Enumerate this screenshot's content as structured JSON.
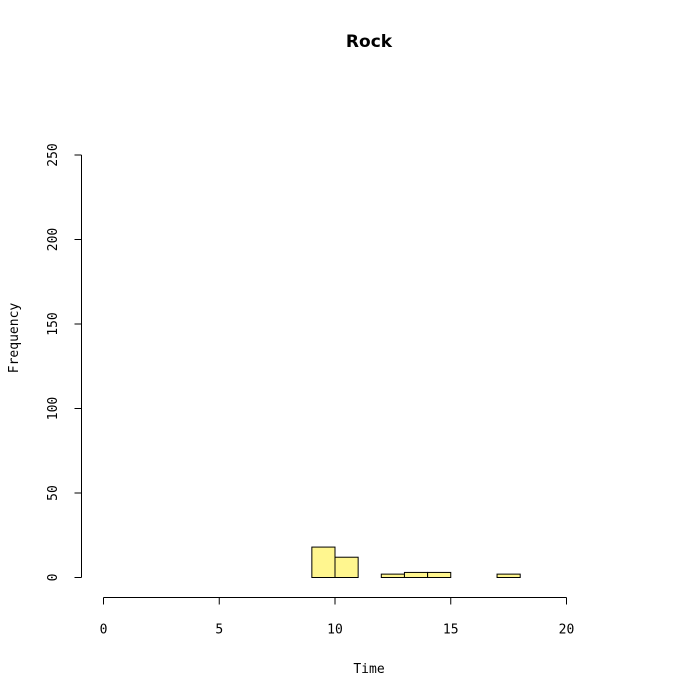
{
  "chart_data": {
    "type": "bar",
    "title": "Rock",
    "xlabel": "Time",
    "ylabel": "Frequency",
    "xlim": [
      0,
      24
    ],
    "ylim": [
      0,
      250
    ],
    "x_ticks": [
      0,
      5,
      10,
      15,
      20
    ],
    "y_ticks": [
      0,
      50,
      100,
      150,
      200,
      250
    ],
    "bin_width": 1,
    "bins": [
      {
        "start": 0,
        "end": 1,
        "count": 0
      },
      {
        "start": 1,
        "end": 2,
        "count": 0
      },
      {
        "start": 2,
        "end": 3,
        "count": 0
      },
      {
        "start": 3,
        "end": 4,
        "count": 0
      },
      {
        "start": 4,
        "end": 5,
        "count": 0
      },
      {
        "start": 5,
        "end": 6,
        "count": 0
      },
      {
        "start": 6,
        "end": 7,
        "count": 0
      },
      {
        "start": 7,
        "end": 8,
        "count": 0
      },
      {
        "start": 8,
        "end": 9,
        "count": 0
      },
      {
        "start": 9,
        "end": 10,
        "count": 18
      },
      {
        "start": 10,
        "end": 11,
        "count": 12
      },
      {
        "start": 11,
        "end": 12,
        "count": 0
      },
      {
        "start": 12,
        "end": 13,
        "count": 2
      },
      {
        "start": 13,
        "end": 14,
        "count": 3
      },
      {
        "start": 14,
        "end": 15,
        "count": 3
      },
      {
        "start": 15,
        "end": 16,
        "count": 0
      },
      {
        "start": 16,
        "end": 17,
        "count": 0
      },
      {
        "start": 17,
        "end": 18,
        "count": 2
      },
      {
        "start": 18,
        "end": 19,
        "count": 0
      },
      {
        "start": 19,
        "end": 20,
        "count": 0
      },
      {
        "start": 20,
        "end": 21,
        "count": 0
      },
      {
        "start": 21,
        "end": 22,
        "count": 0
      },
      {
        "start": 22,
        "end": 23,
        "count": 0
      },
      {
        "start": 23,
        "end": 24,
        "count": 0
      }
    ],
    "bar_color": "#fff68f",
    "grid": false
  }
}
